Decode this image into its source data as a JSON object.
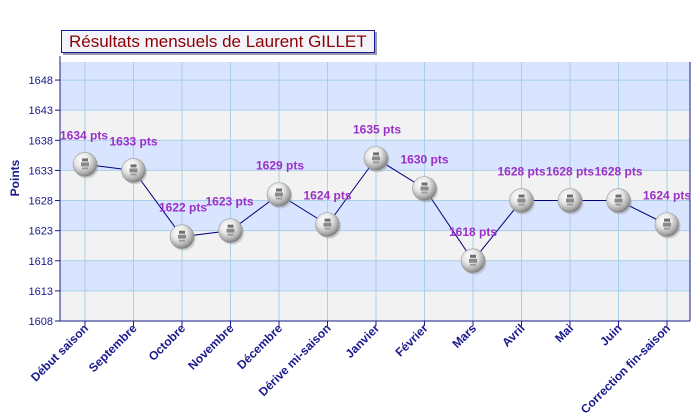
{
  "chart_data": {
    "type": "line",
    "title": "Résultats mensuels de Laurent GILLET",
    "ylabel": "Points",
    "xlabel": "",
    "ylim": [
      1608,
      1651
    ],
    "yticks": [
      1608,
      1613,
      1618,
      1623,
      1628,
      1633,
      1638,
      1643,
      1648
    ],
    "grid": true,
    "legend": "none",
    "categories": [
      "Début saison",
      "Septembre",
      "Octobre",
      "Novembre",
      "Décembre",
      "Dérive mi-saison",
      "Janvier",
      "Février",
      "Mars",
      "Avril",
      "Mai",
      "Juin",
      "Correction fin-saison"
    ],
    "series": [
      {
        "values": [
          1634,
          1633,
          1622,
          1623,
          1629,
          1624,
          1635,
          1630,
          1618,
          1628,
          1628,
          1628,
          1624
        ],
        "labels": [
          "1634 pts",
          "1633 pts",
          "1622 pts",
          "1623 pts",
          "1629 pts",
          "1624 pts",
          "1635 pts",
          "1630 pts",
          "1618 pts",
          "1628 pts",
          "1628 pts",
          "1628 pts",
          "1624 pts"
        ]
      }
    ],
    "colors": {
      "line": "#00007a",
      "label": "#9b30c8",
      "axis_text": "#1a1a8c",
      "band": "#d9e4ff",
      "band_alt": "#f2f2f2",
      "gridline": "#a8d0e8",
      "title_text": "#8b0000"
    }
  }
}
